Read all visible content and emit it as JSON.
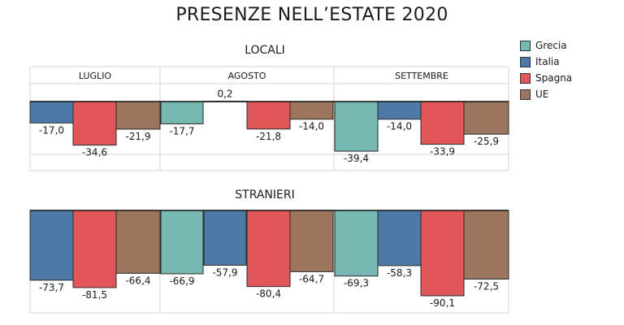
{
  "title": "PRESENZE NELL’ESTATE 2020",
  "legend": [
    {
      "label": "Grecia",
      "color": "#76b7b2"
    },
    {
      "label": "Italia",
      "color": "#4e79a7"
    },
    {
      "label": "Spagna",
      "color": "#e15759"
    },
    {
      "label": "UE",
      "color": "#9c755f"
    }
  ],
  "chart_data": {
    "type": "bar",
    "title": "PRESENZE NELL’ESTATE 2020",
    "months": [
      "LUGLIO",
      "AGOSTO",
      "SETTEMBRE"
    ],
    "series_names": [
      "Grecia",
      "Italia",
      "Spagna",
      "UE"
    ],
    "panels": [
      {
        "name": "LOCALI",
        "values": {
          "LUGLIO": {
            "Italia": -17.0,
            "Spagna": -34.6,
            "UE": -21.9
          },
          "AGOSTO": {
            "Grecia": -17.7,
            "Italia": 0.2,
            "Spagna": -21.8,
            "UE": -14.0
          },
          "SETTEMBRE": {
            "Grecia": -39.4,
            "Italia": -14.0,
            "Spagna": -33.9,
            "UE": -25.9
          }
        },
        "labels": {
          "LUGLIO": {
            "Italia": "-17,0",
            "Spagna": "-34,6",
            "UE": "-21,9"
          },
          "AGOSTO": {
            "Grecia": "-17,7",
            "Italia": "0,2",
            "Spagna": "-21,8",
            "UE": "-14,0"
          },
          "SETTEMBRE": {
            "Grecia": "-39,4",
            "Italia": "-14,0",
            "Spagna": "-33,9",
            "UE": "-25,9"
          }
        }
      },
      {
        "name": "STRANIERI",
        "values": {
          "LUGLIO": {
            "Italia": -73.7,
            "Spagna": -81.5,
            "UE": -66.4
          },
          "AGOSTO": {
            "Grecia": -66.9,
            "Italia": -57.9,
            "Spagna": -80.4,
            "UE": -64.7
          },
          "SETTEMBRE": {
            "Grecia": -69.3,
            "Italia": -58.3,
            "Spagna": -90.1,
            "UE": -72.5
          }
        },
        "labels": {
          "LUGLIO": {
            "Italia": "-73,7",
            "Spagna": "-81,5",
            "UE": "-66,4"
          },
          "AGOSTO": {
            "Grecia": "-66,9",
            "Italia": "-57,9",
            "Spagna": "-80,4",
            "UE": "-64,7"
          },
          "SETTEMBRE": {
            "Grecia": "-69,3",
            "Italia": "-58,3",
            "Spagna": "-90,1",
            "UE": "-72,5"
          }
        }
      }
    ]
  }
}
